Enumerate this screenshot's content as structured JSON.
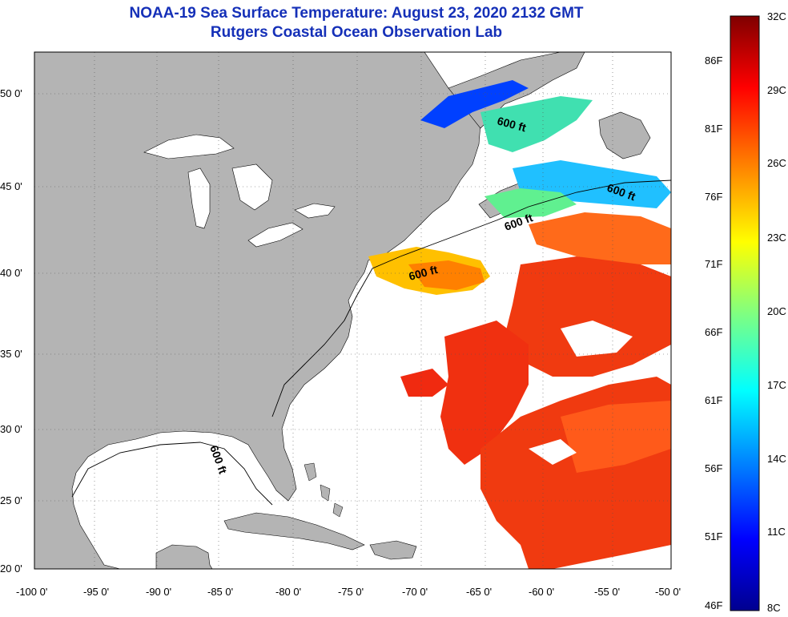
{
  "title": {
    "line1": "NOAA-19 Sea Surface Temperature:  August 23, 2020 2132 GMT",
    "line2": "Rutgers Coastal Ocean Observation Lab"
  },
  "map": {
    "lon_range": [
      -100,
      -50
    ],
    "lat_range": [
      20,
      52.4
    ],
    "lon_ticks": [
      "-100 0'",
      "-95 0'",
      "-90 0'",
      "-85 0'",
      "-80 0'",
      "-75 0'",
      "-70 0'",
      "-65 0'",
      "-60 0'",
      "-55 0'",
      "-50 0'"
    ],
    "lat_ticks": [
      "50 0'",
      "45 0'",
      "40 0'",
      "35 0'",
      "30 0'",
      "25 0'",
      "20 0'"
    ],
    "land_color": "#b4b4b4",
    "cloud_color": "#ffffff",
    "isobath_label": "600 ft"
  },
  "colorbar": {
    "celsius_labels": [
      "32C",
      "29C",
      "26C",
      "23C",
      "20C",
      "17C",
      "14C",
      "11C",
      "8C"
    ],
    "fahrenheit_labels": [
      "86F",
      "81F",
      "76F",
      "71F",
      "66F",
      "61F",
      "56F",
      "51F",
      "46F"
    ],
    "colors": [
      "#7f0000",
      "#ff0000",
      "#ff8000",
      "#ffff00",
      "#80ff80",
      "#00ffff",
      "#0080ff",
      "#0000ff",
      "#00008f"
    ]
  }
}
